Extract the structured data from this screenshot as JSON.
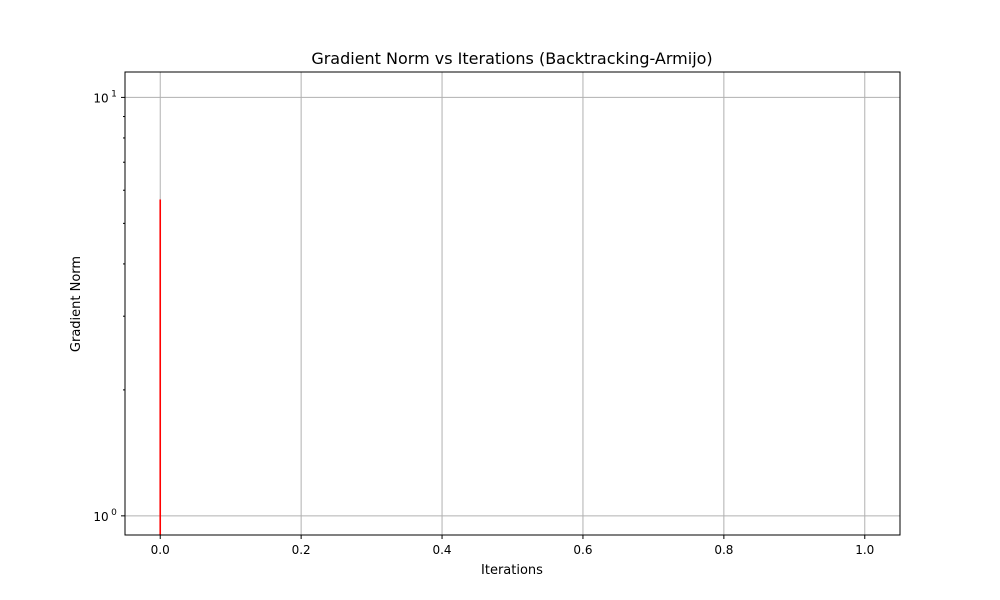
{
  "chart_data": {
    "type": "line",
    "title": "Gradient Norm vs Iterations (Backtracking-Armijo)",
    "xlabel": "Iterations",
    "ylabel": "Gradient Norm",
    "yscale": "log",
    "xlim": [
      -0.05,
      1.05
    ],
    "ylim": [
      0.9,
      11.5
    ],
    "grid": true,
    "x_ticks": [
      {
        "value": 0.0,
        "label": "0.0"
      },
      {
        "value": 0.2,
        "label": "0.2"
      },
      {
        "value": 0.4,
        "label": "0.4"
      },
      {
        "value": 0.6,
        "label": "0.6"
      },
      {
        "value": 0.8,
        "label": "0.8"
      },
      {
        "value": 1.0,
        "label": "1.0"
      }
    ],
    "y_ticks": [
      {
        "value": 1,
        "base": "10",
        "exponent": "0"
      },
      {
        "value": 10,
        "base": "10",
        "exponent": "1"
      }
    ],
    "series": [
      {
        "color": "#ff0000",
        "points": [
          {
            "x": 0,
            "y": 5.7
          },
          {
            "x": 0,
            "y": 0.9
          }
        ]
      }
    ]
  }
}
